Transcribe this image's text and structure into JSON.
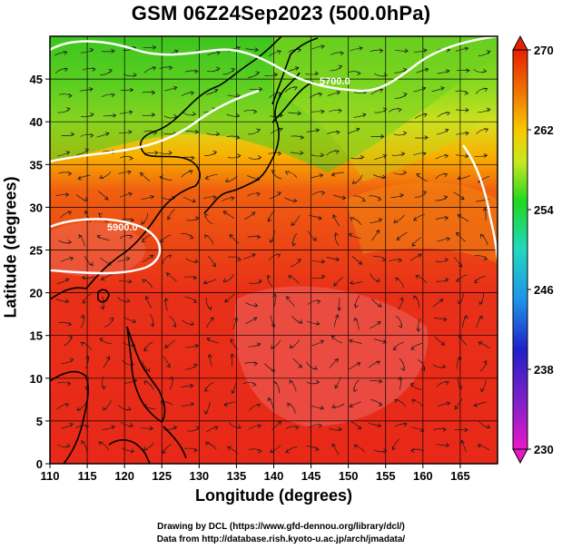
{
  "title": "GSM 06Z24Sep2023 (500.0hPa)",
  "axes": {
    "xlabel": "Longitude (degrees)",
    "ylabel": "Latitude (degrees)",
    "xlim": [
      110,
      170
    ],
    "ylim": [
      0,
      50
    ],
    "xticks": [
      "110",
      "115",
      "120",
      "125",
      "130",
      "135",
      "140",
      "145",
      "150",
      "155",
      "160",
      "165"
    ],
    "yticks": [
      "0",
      "5",
      "10",
      "15",
      "20",
      "25",
      "30",
      "35",
      "40",
      "45"
    ]
  },
  "colorbar": {
    "ticks": [
      "230",
      "238",
      "246",
      "254",
      "262",
      "270"
    ],
    "range": [
      230,
      270
    ],
    "colors": [
      "#e818c8",
      "#2020c8",
      "#2090e8",
      "#20d8c0",
      "#20d820",
      "#c8e820",
      "#f8c800",
      "#f07000",
      "#e82000"
    ]
  },
  "contour_labels": [
    "5700.0",
    "5900.0"
  ],
  "credits": {
    "line1": "Drawing by DCL (https://www.gfd-dennou.org/library/dcl/)",
    "line2": "Data from http://database.rish.kyoto-u.ac.jp/arch/jmadata/"
  }
}
